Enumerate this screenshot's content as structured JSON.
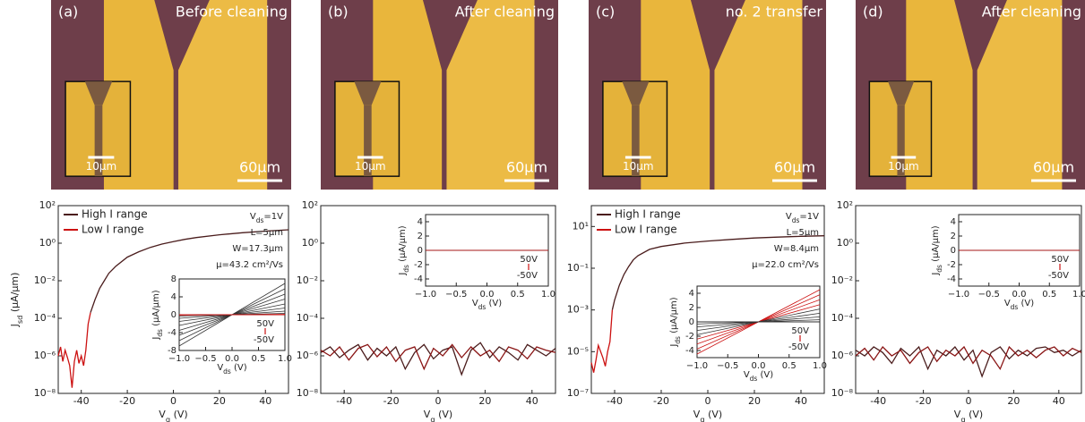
{
  "micrographs": [
    {
      "label": "(a)",
      "caption": "Before cleaning",
      "scale_bar": "60μm",
      "inset_scale_bar": "10μm"
    },
    {
      "label": "(b)",
      "caption": "After cleaning",
      "scale_bar": "60μm",
      "inset_scale_bar": "10μm"
    },
    {
      "label": "(c)",
      "caption": "no. 2 transfer",
      "scale_bar": "60μm",
      "inset_scale_bar": "10μm"
    },
    {
      "label": "(d)",
      "caption": "After cleaning",
      "scale_bar": "60μm",
      "inset_scale_bar": "10μm"
    }
  ],
  "chart_data": [
    {
      "type": "line",
      "log_y": true,
      "xlabel": "V_{g} (V)",
      "ylabel": "J_{sd} (μA/μm)",
      "xlim": [
        -50,
        50
      ],
      "xticks": [
        -40,
        -20,
        0,
        20,
        40
      ],
      "ylim": [
        1e-08,
        100
      ],
      "yticks": [
        {
          "value": 1e-08,
          "label": "10⁻⁸"
        },
        {
          "value": 1e-06,
          "label": "10⁻⁶"
        },
        {
          "value": 0.0001,
          "label": "10⁻⁴"
        },
        {
          "value": 0.01,
          "label": "10⁻²"
        },
        {
          "value": 1,
          "label": "10⁰"
        },
        {
          "value": 100,
          "label": "10²"
        }
      ],
      "annotations": [
        "V_{ds}=1V",
        "L=5μm",
        "W=17.3μm",
        "μ=43.2 cm²/Vs"
      ],
      "series": [
        {
          "name": "High I range",
          "color": "#4a1c1c",
          "x": [
            -36,
            -34,
            -32,
            -30,
            -28,
            -25,
            -20,
            -15,
            -10,
            -5,
            0,
            5,
            10,
            20,
            30,
            40,
            50
          ],
          "values": [
            0.0002,
            0.001,
            0.004,
            0.01,
            0.025,
            0.06,
            0.18,
            0.35,
            0.6,
            0.9,
            1.2,
            1.6,
            2,
            2.8,
            3.6,
            4.4,
            5.2
          ]
        },
        {
          "name": "Low I range",
          "color": "#cc1111",
          "x": [
            -50,
            -49,
            -48,
            -47,
            -46,
            -45,
            -44,
            -43,
            -42,
            -41,
            -40,
            -39,
            -38,
            -37,
            -36
          ],
          "values": [
            1e-06,
            3e-06,
            5e-07,
            2e-06,
            8e-07,
            3e-07,
            2e-08,
            5e-07,
            2e-06,
            4e-07,
            1e-06,
            3e-07,
            2e-06,
            5e-05,
            0.0002
          ]
        }
      ],
      "inset": {
        "xlabel": "V_{ds} (V)",
        "ylabel": "J_{ds} (μA/μm)",
        "xlim": [
          -1,
          1
        ],
        "xticks": [
          {
            "value": -1,
            "label": "−1.0"
          },
          {
            "value": -0.5,
            "label": "−0.5"
          },
          {
            "value": 0,
            "label": "0.0"
          },
          0.5,
          {
            "value": 1,
            "label": "1.0"
          }
        ],
        "ylim": [
          -8,
          8
        ],
        "yticks": [
          -8,
          -4,
          0,
          4,
          8
        ],
        "annotations": [
          "50V",
          "-50V"
        ],
        "x": [
          -1,
          1
        ],
        "series": [
          {
            "color": "#333333",
            "values": [
              -7,
              7
            ]
          },
          {
            "color": "#333333",
            "values": [
              -5.8,
              5.8
            ]
          },
          {
            "color": "#333333",
            "values": [
              -4.6,
              4.6
            ]
          },
          {
            "color": "#333333",
            "values": [
              -3.5,
              3.5
            ]
          },
          {
            "color": "#333333",
            "values": [
              -2.4,
              2.4
            ]
          },
          {
            "color": "#333333",
            "values": [
              -1.5,
              1.5
            ]
          },
          {
            "color": "#333333",
            "values": [
              -0.8,
              0.8
            ]
          },
          {
            "color": "#333333",
            "values": [
              -0.3,
              0.3
            ]
          },
          {
            "color": "#cc1111",
            "values": [
              -0.1,
              0.1
            ]
          },
          {
            "color": "#cc1111",
            "values": [
              -0.02,
              0.02
            ]
          },
          {
            "color": "#cc1111",
            "values": [
              0,
              0
            ]
          }
        ]
      }
    },
    {
      "type": "line",
      "log_y": true,
      "xlabel": "V_{g} (V)",
      "xlim": [
        -50,
        50
      ],
      "xticks": [
        -40,
        -20,
        0,
        20,
        40
      ],
      "ylim": [
        1e-08,
        100
      ],
      "yticks": [
        {
          "value": 1e-08,
          "label": "10⁻⁸"
        },
        {
          "value": 1e-06,
          "label": "10⁻⁶"
        },
        {
          "value": 0.0001,
          "label": "10⁻⁴"
        },
        {
          "value": 0.01,
          "label": "10⁻²"
        },
        {
          "value": 1,
          "label": "10⁰"
        },
        {
          "value": 100,
          "label": "10²"
        }
      ],
      "series": [
        {
          "color": "#4a1c1c",
          "x": [
            -50,
            -46,
            -42,
            -38,
            -34,
            -30,
            -26,
            -22,
            -18,
            -14,
            -10,
            -6,
            -2,
            2,
            6,
            10,
            14,
            18,
            22,
            26,
            30,
            34,
            38,
            42,
            46,
            50
          ],
          "values": [
            1.5e-06,
            3e-06,
            8e-07,
            2e-06,
            4e-06,
            6e-07,
            2.5e-06,
            1e-06,
            3e-06,
            2e-07,
            1.5e-06,
            4e-06,
            7e-07,
            2e-06,
            3e-06,
            1e-07,
            2e-06,
            5e-06,
            8e-07,
            3e-06,
            1.5e-06,
            6e-07,
            4e-06,
            2e-06,
            1e-06,
            2.5e-06
          ]
        },
        {
          "color": "#8a1515",
          "x": [
            -50,
            -46,
            -42,
            -38,
            -34,
            -30,
            -26,
            -22,
            -18,
            -14,
            -10,
            -6,
            -2,
            2,
            6,
            10,
            14,
            18,
            22,
            26,
            30,
            34,
            38,
            42,
            46,
            50
          ],
          "values": [
            2e-06,
            1e-06,
            3e-06,
            6e-07,
            2.5e-06,
            4e-06,
            9e-07,
            3e-06,
            5e-07,
            2e-06,
            3e-06,
            2e-07,
            2.5e-06,
            1e-06,
            4e-06,
            8e-07,
            3e-06,
            1e-06,
            2e-06,
            5e-07,
            3e-06,
            2e-06,
            7e-07,
            3e-06,
            2e-06,
            1.5e-06
          ]
        }
      ],
      "inset": {
        "xlabel": "V_{ds} (V)",
        "ylabel": "J_{ds} (μA/μm)",
        "xlim": [
          -1,
          1
        ],
        "xticks": [
          {
            "value": -1,
            "label": "−1.0"
          },
          {
            "value": -0.5,
            "label": "−0.5"
          },
          {
            "value": 0,
            "label": "0.0"
          },
          0.5,
          {
            "value": 1,
            "label": "1.0"
          }
        ],
        "ylim": [
          -5,
          5
        ],
        "yticks": [
          -4,
          -2,
          0,
          2,
          4
        ],
        "annotations": [
          "50V",
          "-50V"
        ],
        "x": [
          -1,
          1
        ],
        "series": [
          {
            "color": "#333333",
            "values": [
              0,
              0
            ]
          },
          {
            "color": "#cc1111",
            "values": [
              0,
              0
            ]
          }
        ]
      }
    },
    {
      "type": "line",
      "log_y": true,
      "xlabel": "V_{g} (V)",
      "xlim": [
        -50,
        50
      ],
      "xticks": [
        -40,
        -20,
        0,
        20,
        40
      ],
      "ylim": [
        1e-07,
        100
      ],
      "yticks": [
        {
          "value": 1e-07,
          "label": "10⁻⁷"
        },
        {
          "value": 1e-05,
          "label": "10⁻⁵"
        },
        {
          "value": 0.001,
          "label": "10⁻³"
        },
        {
          "value": 0.1,
          "label": "10⁻¹"
        },
        {
          "value": 10,
          "label": "10¹"
        }
      ],
      "annotations": [
        "V_{ds}=1V",
        "L=5μm",
        "W=8.4μm",
        "μ=22.0 cm²/Vs"
      ],
      "series": [
        {
          "name": "High I range",
          "color": "#4a1c1c",
          "x": [
            -41,
            -40,
            -38,
            -36,
            -34,
            -32,
            -30,
            -25,
            -20,
            -10,
            0,
            10,
            20,
            30,
            40,
            50
          ],
          "values": [
            0.001,
            0.003,
            0.015,
            0.05,
            0.12,
            0.25,
            0.4,
            0.8,
            1.1,
            1.6,
            2,
            2.4,
            2.8,
            3.1,
            3.4,
            3.6
          ]
        },
        {
          "name": "Low I range",
          "color": "#cc1111",
          "x": [
            -50,
            -49,
            -48,
            -47,
            -46,
            -45,
            -44,
            -43,
            -42,
            -41
          ],
          "values": [
            3e-06,
            1e-06,
            4e-06,
            2e-05,
            1e-05,
            5e-06,
            2e-06,
            1e-05,
            3e-05,
            0.001
          ]
        }
      ],
      "inset": {
        "xlabel": "V_{ds} (V)",
        "ylabel": "J_{ds} (μA/μm)",
        "xlim": [
          -1,
          1
        ],
        "xticks": [
          {
            "value": -1,
            "label": "−1.0"
          },
          {
            "value": -0.5,
            "label": "−0.5"
          },
          {
            "value": 0,
            "label": "0.0"
          },
          0.5,
          {
            "value": 1,
            "label": "1.0"
          }
        ],
        "ylim": [
          -5,
          5
        ],
        "yticks": [
          -4,
          -2,
          0,
          2,
          4
        ],
        "annotations": [
          "50V",
          "-50V"
        ],
        "x": [
          -1,
          1
        ],
        "series": [
          {
            "color": "#cc1111",
            "values": [
              -4.5,
              4.5
            ]
          },
          {
            "color": "#cc1111",
            "values": [
              -3.8,
              3.8
            ]
          },
          {
            "color": "#cc1111",
            "values": [
              -3.1,
              3.1
            ]
          },
          {
            "color": "#cc1111",
            "values": [
              -2.4,
              2.4
            ]
          },
          {
            "color": "#333333",
            "values": [
              -1.8,
              1.8
            ]
          },
          {
            "color": "#333333",
            "values": [
              -1.2,
              1.2
            ]
          },
          {
            "color": "#333333",
            "values": [
              -0.7,
              0.7
            ]
          },
          {
            "color": "#333333",
            "values": [
              -0.3,
              0.3
            ]
          },
          {
            "color": "#333333",
            "values": [
              0,
              0
            ]
          }
        ]
      }
    },
    {
      "type": "line",
      "log_y": true,
      "xlabel": "V_{g} (V)",
      "xlim": [
        -50,
        50
      ],
      "xticks": [
        -40,
        -20,
        0,
        20,
        40
      ],
      "ylim": [
        1e-08,
        100
      ],
      "yticks": [
        {
          "value": 1e-08,
          "label": "10⁻⁸"
        },
        {
          "value": 1e-06,
          "label": "10⁻⁶"
        },
        {
          "value": 0.0001,
          "label": "10⁻⁴"
        },
        {
          "value": 0.01,
          "label": "10⁻²"
        },
        {
          "value": 1,
          "label": "10⁰"
        },
        {
          "value": 100,
          "label": "10²"
        }
      ],
      "series": [
        {
          "color": "#4a1c1c",
          "x": [
            -50,
            -46,
            -42,
            -38,
            -34,
            -30,
            -26,
            -22,
            -18,
            -14,
            -10,
            -6,
            -2,
            2,
            6,
            10,
            14,
            18,
            22,
            26,
            30,
            34,
            38,
            42,
            46,
            50
          ],
          "values": [
            2e-06,
            1e-06,
            3e-06,
            1.5e-06,
            4e-07,
            2.5e-06,
            1e-06,
            3e-06,
            2e-07,
            2e-06,
            1e-06,
            3e-06,
            6e-07,
            2e-06,
            8e-08,
            1.5e-06,
            3e-06,
            7e-07,
            2e-06,
            1e-06,
            2.5e-06,
            3e-06,
            1.5e-06,
            2e-06,
            1e-06,
            2e-06
          ]
        },
        {
          "color": "#8a1515",
          "x": [
            -50,
            -46,
            -42,
            -38,
            -34,
            -30,
            -26,
            -22,
            -18,
            -14,
            -10,
            -6,
            -2,
            2,
            6,
            10,
            14,
            18,
            22,
            26,
            30,
            34,
            38,
            42,
            46,
            50
          ],
          "values": [
            1e-06,
            2.5e-06,
            6e-07,
            3e-06,
            1e-06,
            2e-06,
            4e-07,
            1.5e-06,
            3e-06,
            5e-07,
            2e-06,
            1e-06,
            3e-06,
            4e-07,
            2e-06,
            1e-06,
            2e-07,
            3e-06,
            1e-06,
            2e-06,
            8e-07,
            2e-06,
            3e-06,
            1e-06,
            2.5e-06,
            1.5e-06
          ]
        }
      ],
      "inset": {
        "xlabel": "V_{ds} (V)",
        "ylabel": "J_{ds} (μA/μm)",
        "xlim": [
          -1,
          1
        ],
        "xticks": [
          {
            "value": -1,
            "label": "−1.0"
          },
          {
            "value": -0.5,
            "label": "−0.5"
          },
          {
            "value": 0,
            "label": "0.0"
          },
          0.5,
          {
            "value": 1,
            "label": "1.0"
          }
        ],
        "ylim": [
          -5,
          5
        ],
        "yticks": [
          -4,
          -2,
          0,
          2,
          4
        ],
        "annotations": [
          "50V",
          "-50V"
        ],
        "x": [
          -1,
          1
        ],
        "series": [
          {
            "color": "#333333",
            "values": [
              0,
              0
            ]
          },
          {
            "color": "#cc1111",
            "values": [
              0,
              0
            ]
          }
        ]
      }
    }
  ]
}
